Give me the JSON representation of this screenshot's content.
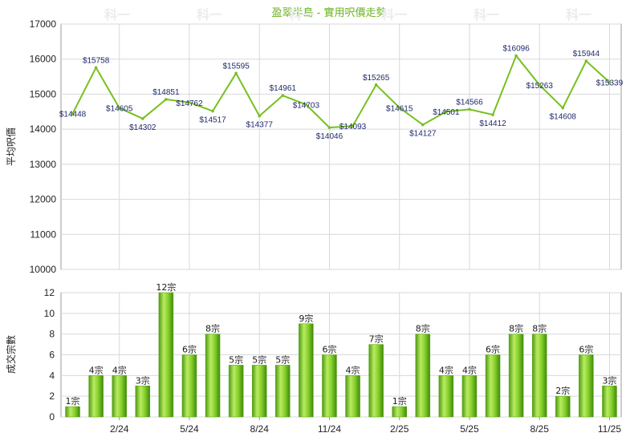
{
  "title": "盈翠半島 - 實用呎價走勢",
  "watermark": "科一",
  "chart_data": [
    {
      "type": "line",
      "ylabel": "平均呎價",
      "ylim": [
        10000,
        17000
      ],
      "yticks": [
        "10000",
        "11000",
        "12000",
        "13000",
        "14000",
        "15000",
        "16000",
        "17000"
      ],
      "color": "#77c020",
      "values": [
        14448,
        15758,
        14605,
        14302,
        14851,
        14762,
        14517,
        15595,
        14377,
        14961,
        14703,
        14046,
        14093,
        15265,
        14615,
        14127,
        14501,
        14566,
        14412,
        16096,
        15263,
        14608,
        15944,
        15339
      ],
      "labels": [
        "$14448",
        "$15758",
        "$14605",
        "$14302",
        "$14851",
        "$14762",
        "$14517",
        "$15595",
        "$14377",
        "$14961",
        "$14703",
        "$14046",
        "$14093",
        "$15265",
        "$14615",
        "$14127",
        "$14501",
        "$14566",
        "$14412",
        "$16096",
        "$15263",
        "$14608",
        "$15944",
        "$15339"
      ]
    },
    {
      "type": "bar",
      "ylabel": "成交宗數",
      "ylim": [
        0,
        12
      ],
      "yticks": [
        "0",
        "2",
        "4",
        "6",
        "8",
        "10",
        "12"
      ],
      "color": "#77c020",
      "values": [
        1,
        4,
        4,
        3,
        12,
        6,
        8,
        5,
        5,
        5,
        9,
        6,
        4,
        7,
        1,
        8,
        4,
        4,
        6,
        8,
        8,
        2,
        6,
        3
      ],
      "labels": [
        "1宗",
        "4宗",
        "4宗",
        "3宗",
        "12宗",
        "6宗",
        "8宗",
        "5宗",
        "5宗",
        "5宗",
        "9宗",
        "6宗",
        "4宗",
        "7宗",
        "1宗",
        "8宗",
        "4宗",
        "4宗",
        "6宗",
        "8宗",
        "8宗",
        "2宗",
        "6宗",
        "3宗"
      ]
    }
  ],
  "x_tick_labels": [
    {
      "index": 2,
      "label": "2/24"
    },
    {
      "index": 5,
      "label": "5/24"
    },
    {
      "index": 8,
      "label": "8/24"
    },
    {
      "index": 11,
      "label": "11/24"
    },
    {
      "index": 14,
      "label": "2/25"
    },
    {
      "index": 17,
      "label": "5/25"
    },
    {
      "index": 20,
      "label": "8/25"
    },
    {
      "index": 23,
      "label": "11/25"
    }
  ]
}
